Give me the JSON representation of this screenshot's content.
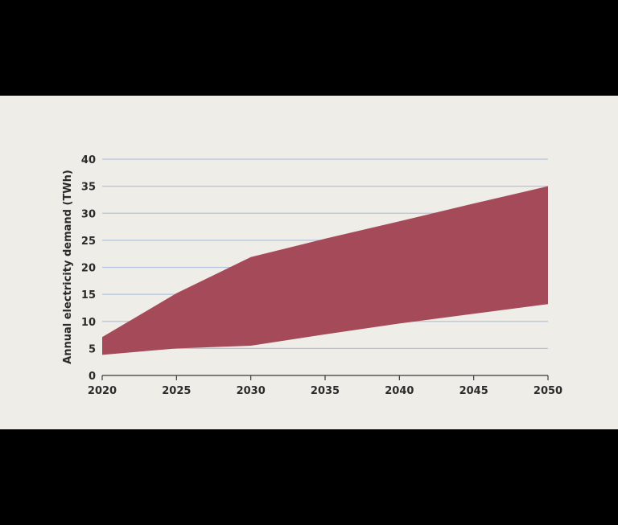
{
  "chart_data": {
    "type": "area",
    "title": "",
    "xlabel": "",
    "ylabel": "Annual electricity demand (TWh)",
    "x_ticks": [
      "2020",
      "2025",
      "2030",
      "2035",
      "2040",
      "2045",
      "2050"
    ],
    "y_ticks": [
      "0",
      "5",
      "10",
      "15",
      "20",
      "25",
      "30",
      "35",
      "40"
    ],
    "xlim": [
      2020,
      2050
    ],
    "ylim": [
      0,
      40
    ],
    "grid": true,
    "colors": {
      "fill": "#a54a58",
      "grid": "#b4c3dc",
      "axis": "#3a3a3a",
      "background": "#efede8"
    },
    "band": {
      "x": [
        2020,
        2025,
        2030,
        2035,
        2040,
        2045,
        2050
      ],
      "upper": [
        7.1,
        15.2,
        21.9,
        25.3,
        28.5,
        31.8,
        35.0
      ],
      "lower": [
        3.8,
        5.0,
        5.5,
        7.6,
        9.6,
        11.4,
        13.2
      ]
    }
  }
}
